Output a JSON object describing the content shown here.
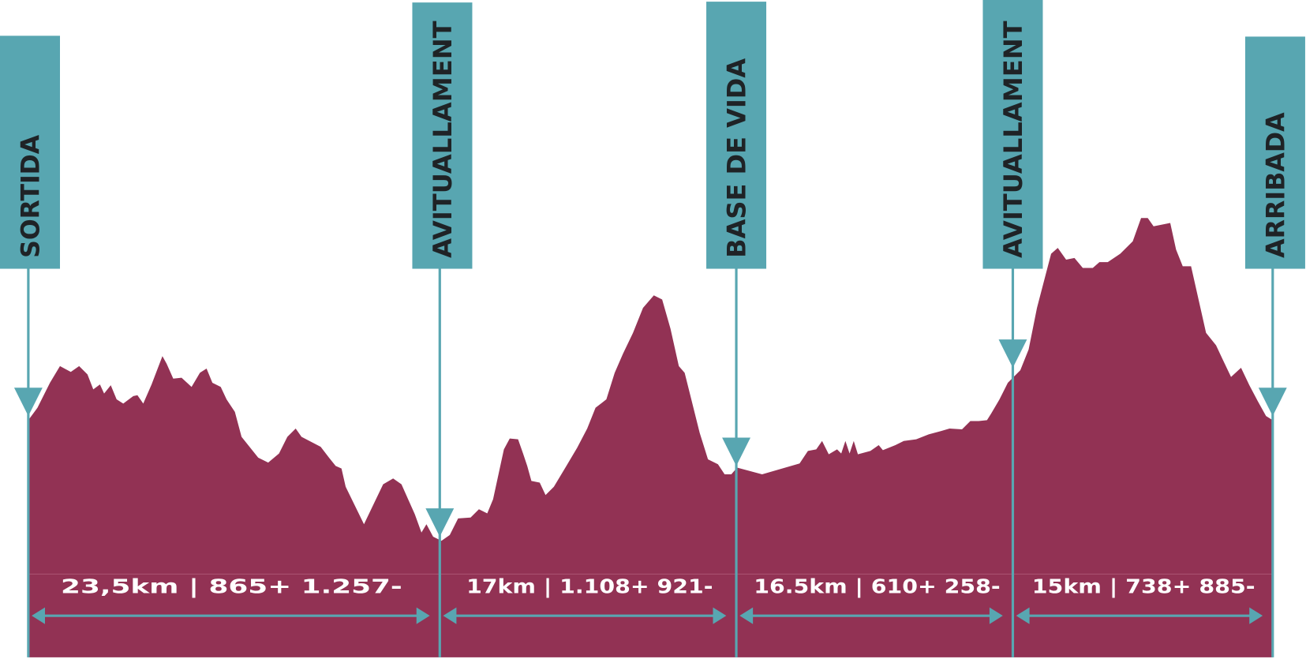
{
  "markers": [
    {
      "label": "SORTIDA"
    },
    {
      "label": "AVITUALLAMENT"
    },
    {
      "label": "BASE DE VIDA"
    },
    {
      "label": "AVITUALLAMENT"
    },
    {
      "label": "ARRIBADA"
    }
  ],
  "segments": [
    {
      "label": "23,5km | 865+ 1.257-"
    },
    {
      "label": "17km | 1.108+ 921-"
    },
    {
      "label": "16.5km | 610+ 258-"
    },
    {
      "label": "15km | 738+ 885-"
    }
  ]
}
